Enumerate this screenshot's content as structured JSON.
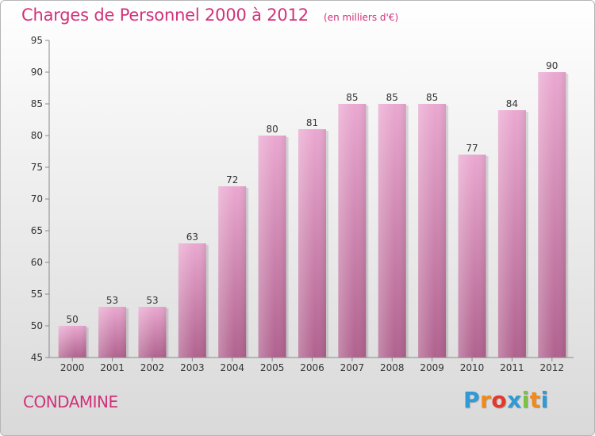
{
  "title": "Charges de Personnel 2000 à 2012",
  "unit_note": "(en milliers d'€)",
  "commune": "CONDAMINE",
  "brand": {
    "letters": [
      "P",
      "r",
      "o",
      "x",
      "i",
      "t",
      "i"
    ],
    "colors": [
      "#2e9bd6",
      "#f08a1c",
      "#e2392c",
      "#2e9bd6",
      "#7cc242",
      "#f08a1c",
      "#2e9bd6"
    ]
  },
  "colors": {
    "bar_top": "#eaa8d0",
    "bar_bottom": "#b0628e",
    "axis": "#888888",
    "tick_text": "#333333",
    "accent": "#d2317a"
  },
  "chart_data": {
    "type": "bar",
    "categories": [
      "2000",
      "2001",
      "2002",
      "2003",
      "2004",
      "2005",
      "2006",
      "2007",
      "2008",
      "2009",
      "2010",
      "2011",
      "2012"
    ],
    "values": [
      50,
      53,
      53,
      63,
      72,
      80,
      81,
      85,
      85,
      85,
      77,
      84,
      90
    ],
    "title": "Charges de Personnel 2000 à 2012",
    "subtitle": "(en milliers d'€)",
    "xlabel": "",
    "ylabel": "",
    "ylim": [
      45,
      95
    ],
    "yticks": [
      45,
      50,
      55,
      60,
      65,
      70,
      75,
      80,
      85,
      90,
      95
    ],
    "grid": false,
    "legend": "none",
    "data_labels": true
  }
}
